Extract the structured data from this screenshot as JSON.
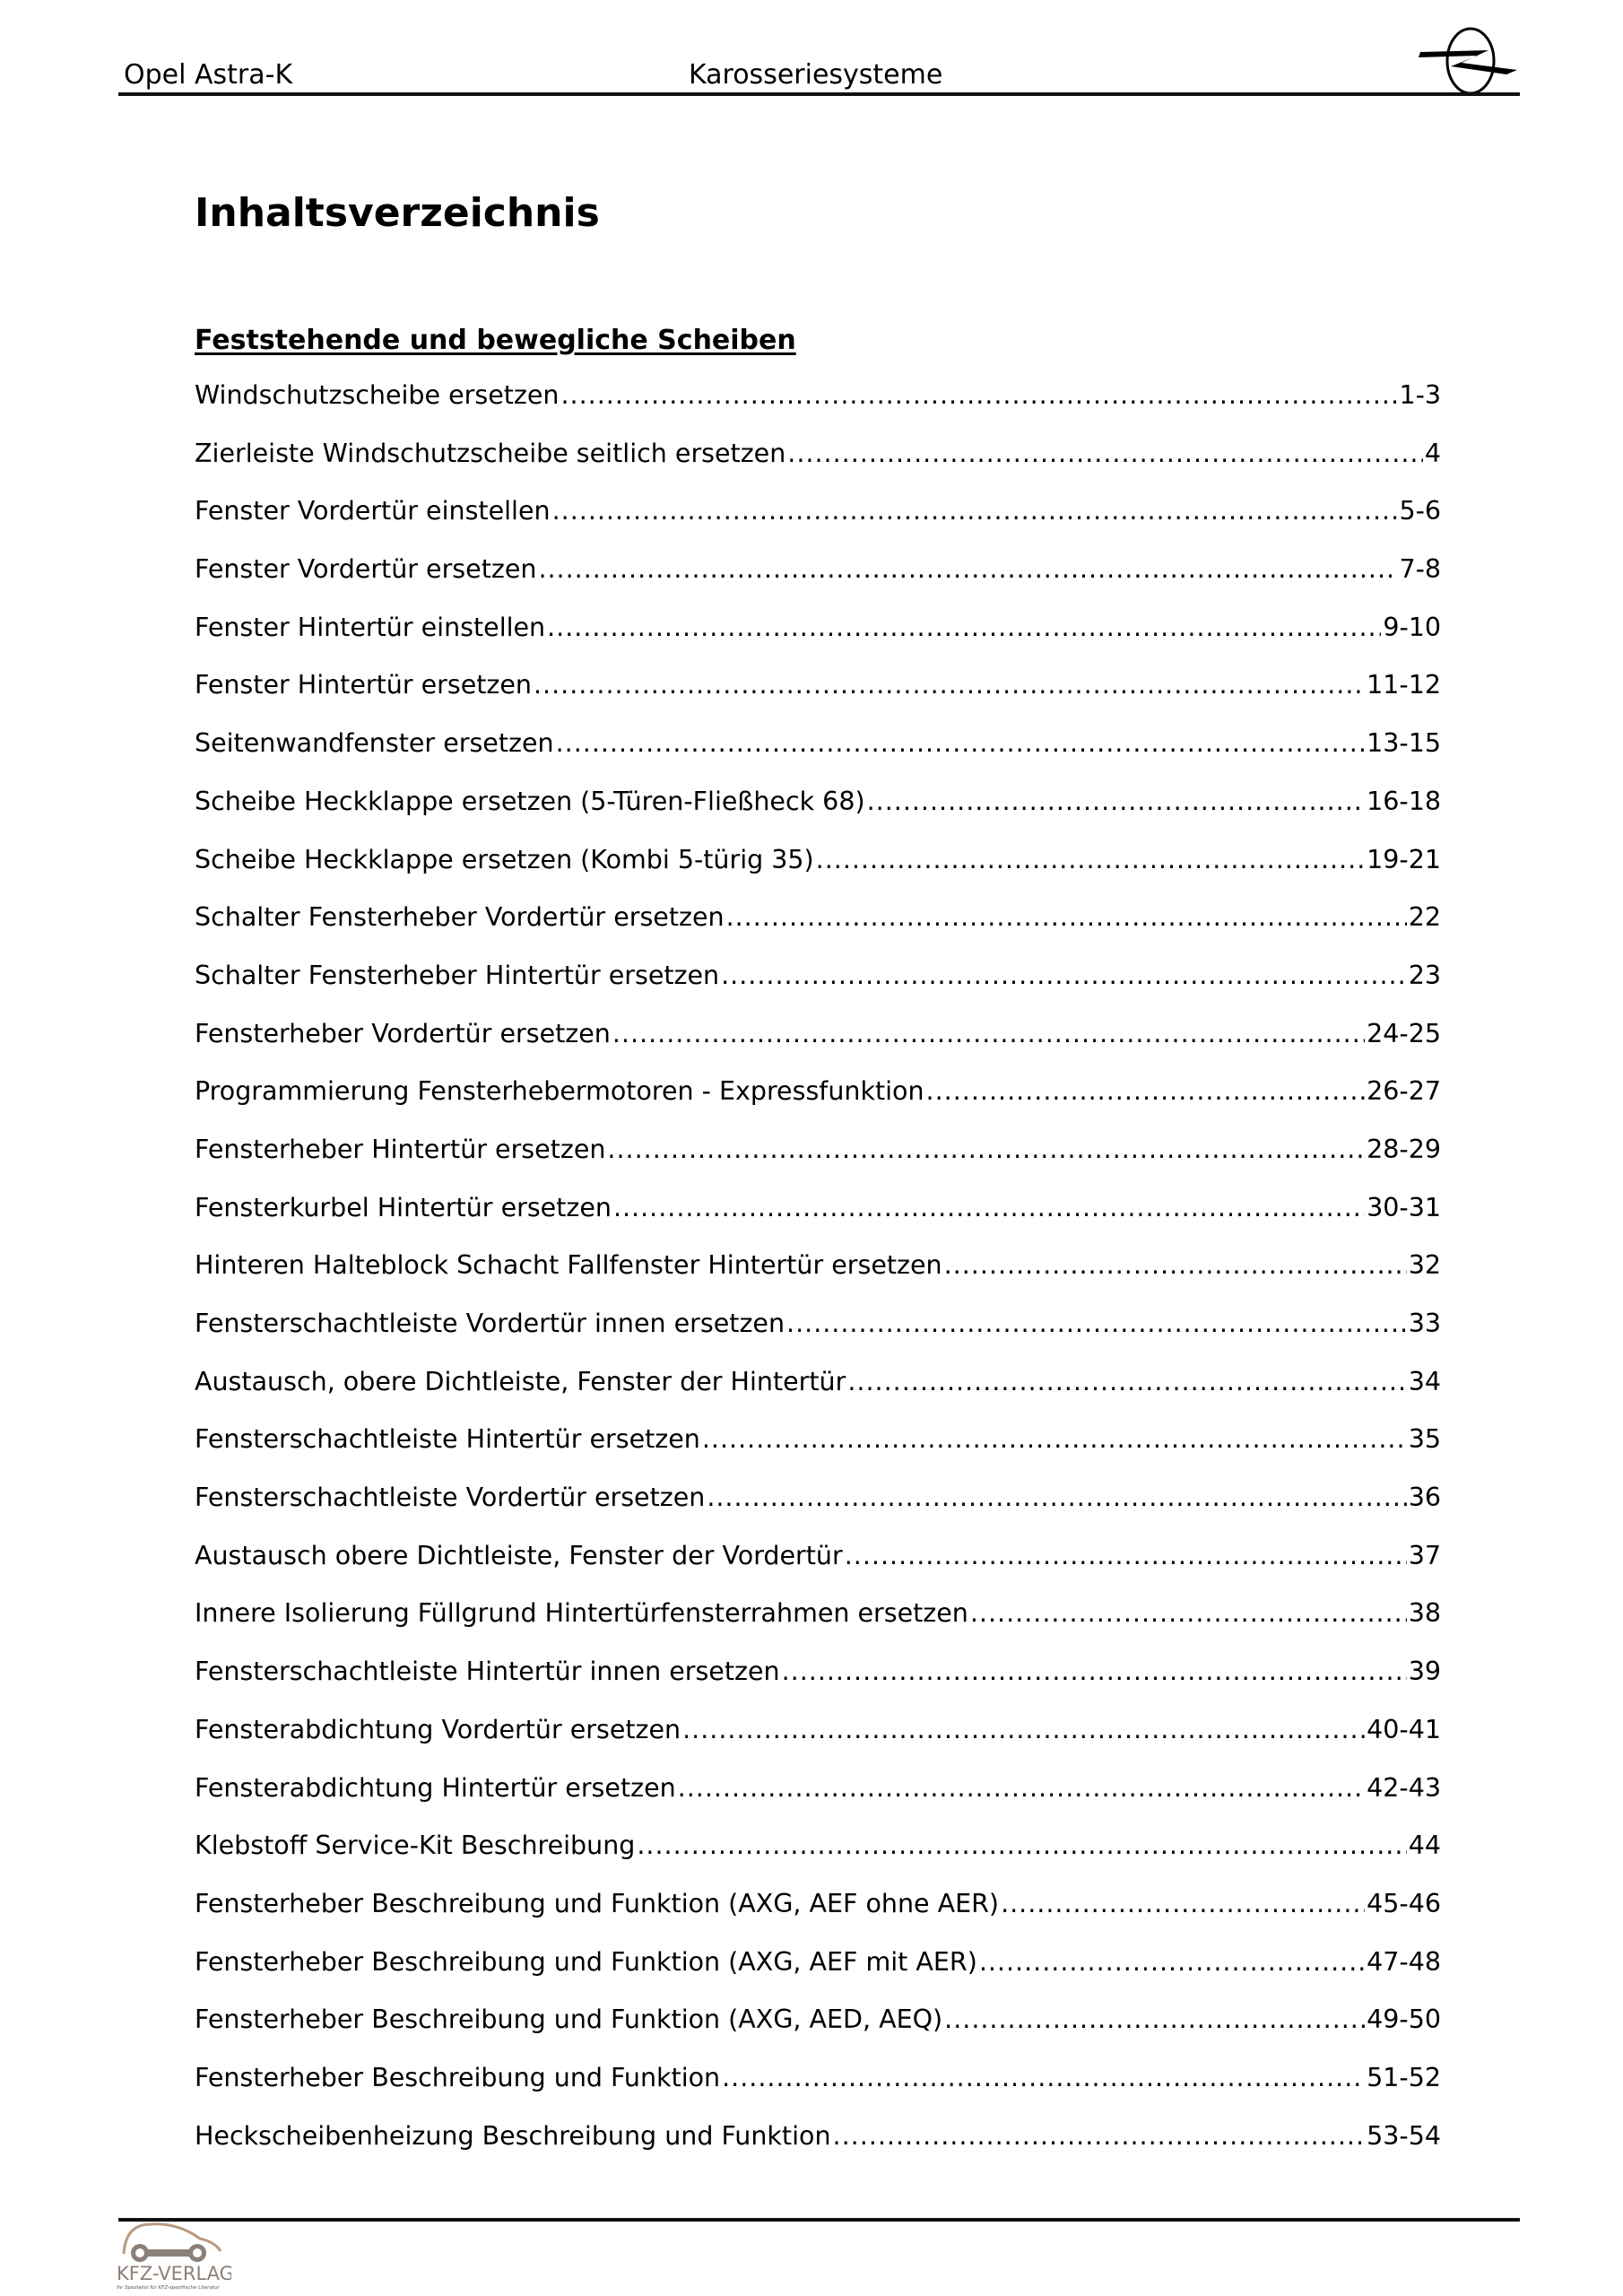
{
  "header": {
    "left": "Opel Astra-K",
    "center": "Karosseriesysteme",
    "logo": "Opel"
  },
  "title": "Inhaltsverzeichnis",
  "section": "Feststehende und bewegliche Scheiben",
  "entries": [
    {
      "title": "Windschutzscheibe ersetzen",
      "page": "1-3"
    },
    {
      "title": "Zierleiste Windschutzscheibe seitlich ersetzen",
      "page": "4"
    },
    {
      "title": "Fenster Vordertür einstellen",
      "page": "5-6"
    },
    {
      "title": "Fenster Vordertür ersetzen",
      "page": "7-8"
    },
    {
      "title": "Fenster Hintertür einstellen",
      "page": "9-10"
    },
    {
      "title": "Fenster Hintertür ersetzen",
      "page": "11-12"
    },
    {
      "title": "Seitenwandfenster ersetzen",
      "page": "13-15"
    },
    {
      "title": "Scheibe Heckklappe ersetzen (5-Türen-Fließheck 68)",
      "page": "16-18"
    },
    {
      "title": "Scheibe Heckklappe ersetzen (Kombi 5-türig 35)",
      "page": "19-21"
    },
    {
      "title": "Schalter Fensterheber Vordertür ersetzen",
      "page": "22"
    },
    {
      "title": "Schalter Fensterheber Hintertür ersetzen",
      "page": "23"
    },
    {
      "title": "Fensterheber Vordertür ersetzen",
      "page": "24-25"
    },
    {
      "title": "Programmierung Fensterhebermotoren - Expressfunktion",
      "page": "26-27"
    },
    {
      "title": "Fensterheber Hintertür ersetzen",
      "page": "28-29"
    },
    {
      "title": "Fensterkurbel Hintertür ersetzen",
      "page": "30-31"
    },
    {
      "title": "Hinteren Halteblock Schacht Fallfenster Hintertür ersetzen",
      "page": "32"
    },
    {
      "title": "Fensterschachtleiste Vordertür innen ersetzen",
      "page": "33"
    },
    {
      "title": "Austausch, obere Dichtleiste, Fenster der Hintertür",
      "page": "34"
    },
    {
      "title": "Fensterschachtleiste Hintertür ersetzen",
      "page": "35"
    },
    {
      "title": "Fensterschachtleiste Vordertür ersetzen",
      "page": "36"
    },
    {
      "title": "Austausch obere Dichtleiste, Fenster der Vordertür",
      "page": "37"
    },
    {
      "title": "Innere Isolierung Füllgrund Hintertürfensterrahmen ersetzen",
      "page": "38"
    },
    {
      "title": "Fensterschachtleiste Hintertür innen ersetzen",
      "page": "39"
    },
    {
      "title": "Fensterabdichtung Vordertür ersetzen",
      "page": "40-41"
    },
    {
      "title": "Fensterabdichtung Hintertür ersetzen",
      "page": "42-43"
    },
    {
      "title": "Klebstoff Service-Kit Beschreibung",
      "page": "44"
    },
    {
      "title": "Fensterheber Beschreibung und Funktion (AXG, AEF ohne AER)",
      "page": "45-46"
    },
    {
      "title": "Fensterheber Beschreibung und Funktion (AXG, AEF mit AER)",
      "page": "47-48"
    },
    {
      "title": "Fensterheber Beschreibung und Funktion (AXG, AED, AEQ)",
      "page": "49-50"
    },
    {
      "title": "Fensterheber Beschreibung und Funktion",
      "page": "51-52"
    },
    {
      "title": "Heckscheibenheizung Beschreibung und Funktion",
      "page": "53-54"
    }
  ],
  "footer": {
    "logo_text": "KFZ-VERLAG",
    "logo_tagline": "Ihr Spezialist für KFZ-spezifische Literatur"
  }
}
